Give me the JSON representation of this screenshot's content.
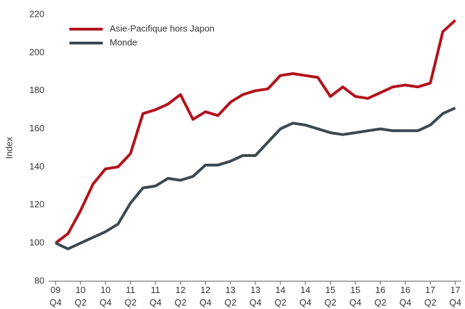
{
  "chart_data": {
    "type": "line",
    "y_label": "Index",
    "categories": [
      "09 Q4",
      null,
      "10 Q2",
      null,
      "10 Q4",
      null,
      "11 Q2",
      null,
      "11 Q4",
      null,
      "12 Q2",
      null,
      "12 Q4",
      null,
      "13 Q2",
      null,
      "13 Q4",
      null,
      "14 Q2",
      null,
      "14 Q4",
      null,
      "15 Q2",
      null,
      "15 Q4",
      null,
      "16 Q2",
      null,
      "16 Q4",
      null,
      "17 Q2",
      null,
      "17 Q4"
    ],
    "series": [
      {
        "name": "Asie-Pacifique hors Japon",
        "color": "#b3121c",
        "values": [
          100,
          105,
          117,
          131,
          139,
          140,
          147,
          168,
          170,
          173,
          178,
          165,
          169,
          167,
          174,
          178,
          180,
          181,
          188,
          189,
          188,
          187,
          177,
          182,
          177,
          176,
          179,
          182,
          183,
          182,
          184,
          211,
          217
        ]
      },
      {
        "name": "Monde",
        "color": "#3b4850",
        "values": [
          100,
          97,
          100,
          103,
          106,
          110,
          121,
          129,
          130,
          134,
          133,
          135,
          141,
          141,
          143,
          146,
          146,
          153,
          160,
          163,
          162,
          160,
          158,
          157,
          158,
          159,
          160,
          159,
          159,
          159,
          162,
          168,
          171
        ]
      }
    ],
    "ylim": [
      80,
      220
    ],
    "yticks": [
      80,
      100,
      120,
      140,
      160,
      180,
      200,
      220
    ],
    "grid": false,
    "legend": "top-left"
  }
}
